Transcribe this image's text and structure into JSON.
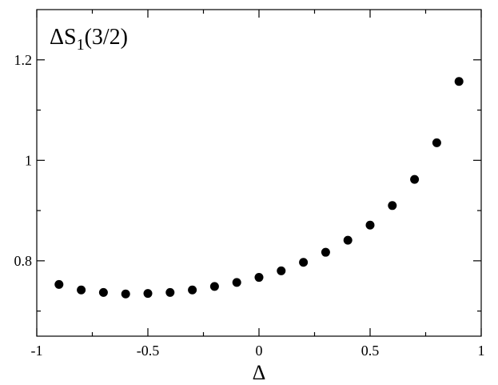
{
  "chart_data": {
    "type": "scatter",
    "title": "",
    "xlabel": "Δ",
    "ylabel": "",
    "annotation": {
      "main": "ΔS",
      "subscript": "1",
      "suffix": "(3/2)"
    },
    "xlim": [
      -1,
      1
    ],
    "ylim": [
      0.65,
      1.3
    ],
    "x_ticks": [
      -1,
      -0.5,
      0,
      0.5,
      1
    ],
    "x_tick_labels": [
      "-1",
      "-0.5",
      "0",
      "0.5",
      "1"
    ],
    "y_ticks": [
      0.8,
      1.0,
      1.2
    ],
    "y_tick_labels": [
      "0.8",
      "1",
      "1.2"
    ],
    "grid": false,
    "marker_color": "#000000",
    "x": [
      -0.9,
      -0.8,
      -0.7,
      -0.6,
      -0.5,
      -0.4,
      -0.3,
      -0.2,
      -0.1,
      0.0,
      0.1,
      0.2,
      0.3,
      0.4,
      0.5,
      0.6,
      0.7,
      0.8,
      0.9
    ],
    "y": [
      0.753,
      0.742,
      0.737,
      0.734,
      0.735,
      0.737,
      0.742,
      0.749,
      0.757,
      0.767,
      0.78,
      0.797,
      0.817,
      0.841,
      0.871,
      0.91,
      0.962,
      1.035,
      1.157
    ]
  }
}
